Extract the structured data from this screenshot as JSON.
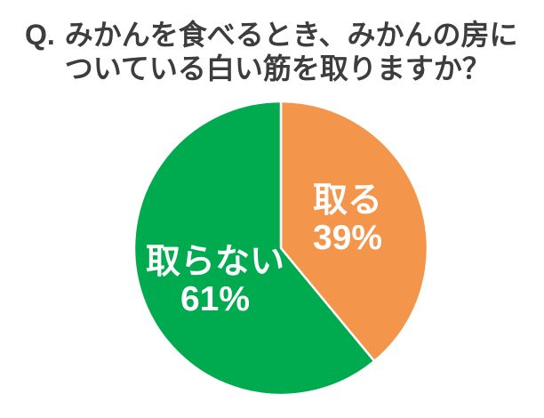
{
  "title": {
    "prefix": "Q.",
    "line1": "みかんを食べるとき、みかんの房に",
    "line2": "ついている白い筋を取りますか？"
  },
  "chart_data": {
    "type": "pie",
    "title": "Q. みかんを食べるとき、みかんの房についている白い筋を取りますか？",
    "unit": "%",
    "start_angle_deg": 0,
    "direction": "clockwise",
    "separator_color": "#FFFFFF",
    "label_text_color": "#FFFFFF",
    "background_color": "#FFFFFF",
    "title_color": "#3D3D3D",
    "slices": [
      {
        "label": "取る",
        "value": 39,
        "percent_label": "39%",
        "color": "#F3954B"
      },
      {
        "label": "取らない",
        "value": 61,
        "percent_label": "61%",
        "color": "#00AB4F"
      }
    ]
  }
}
